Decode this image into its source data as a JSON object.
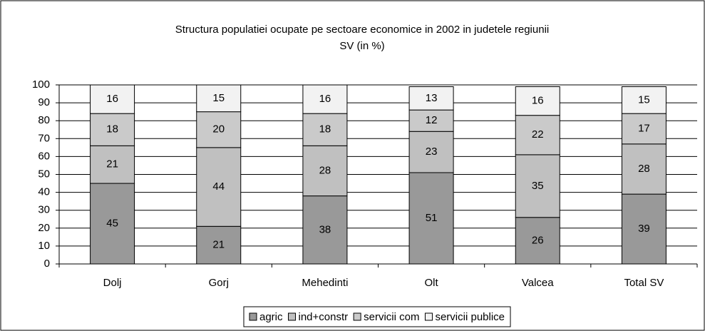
{
  "chart_data": {
    "type": "bar",
    "stacked": true,
    "title": [
      "Structura populatiei ocupate pe sectoare economice in 2002 in judetele regiunii",
      "SV (in %)"
    ],
    "categories": [
      "Dolj",
      "Gorj",
      "Mehedinti",
      "Olt",
      "Valcea",
      "Total SV"
    ],
    "series": [
      {
        "name": "agric",
        "color": "#999999",
        "values": [
          45,
          21,
          38,
          51,
          26,
          39
        ]
      },
      {
        "name": "ind+constr",
        "color": "#c0c0c0",
        "values": [
          21,
          44,
          28,
          23,
          35,
          28
        ]
      },
      {
        "name": "servicii com",
        "color": "#cacaca",
        "values": [
          18,
          20,
          18,
          12,
          22,
          17
        ]
      },
      {
        "name": "servicii publice",
        "color": "#f2f2f2",
        "values": [
          16,
          15,
          16,
          13,
          16,
          15
        ]
      }
    ],
    "ylim": [
      0,
      100
    ],
    "yticks": [
      0,
      10,
      20,
      30,
      40,
      50,
      60,
      70,
      80,
      90,
      100
    ],
    "grid": true,
    "legend": "bottom"
  }
}
